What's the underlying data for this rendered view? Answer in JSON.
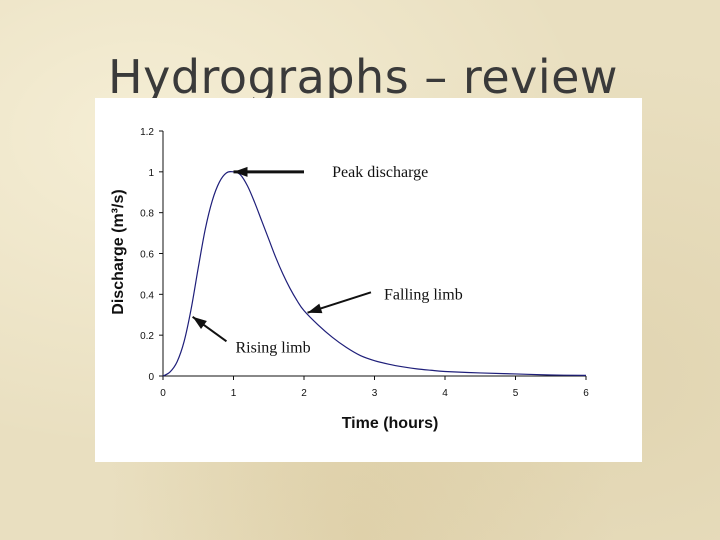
{
  "slide": {
    "title": "Hydrographs – review"
  },
  "chart_data": {
    "type": "line",
    "xlabel": "Time (hours)",
    "ylabel": "Discharge (m³/s)",
    "xlim": [
      0,
      6
    ],
    "ylim": [
      0,
      1.2
    ],
    "xticks": [
      "0",
      "1",
      "2",
      "3",
      "4",
      "5",
      "6"
    ],
    "yticks": [
      "0",
      "0.2",
      "0.4",
      "0.6",
      "0.8",
      "1",
      "1.2"
    ],
    "grid": false,
    "series": [
      {
        "x": [
          0,
          0.1,
          0.2,
          0.3,
          0.4,
          0.5,
          0.6,
          0.7,
          0.8,
          0.9,
          1.0,
          1.1,
          1.2,
          1.3,
          1.4,
          1.5,
          1.6,
          1.7,
          1.8,
          1.9,
          2.0,
          2.2,
          2.4,
          2.6,
          2.8,
          3.0,
          3.2,
          3.4,
          3.6,
          3.8,
          4.0,
          4.5,
          5.0,
          5.5,
          6.0
        ],
        "y": [
          0,
          0.02,
          0.07,
          0.17,
          0.33,
          0.53,
          0.72,
          0.86,
          0.95,
          0.995,
          1.0,
          0.985,
          0.93,
          0.85,
          0.76,
          0.67,
          0.58,
          0.5,
          0.43,
          0.37,
          0.32,
          0.25,
          0.19,
          0.14,
          0.1,
          0.075,
          0.058,
          0.045,
          0.035,
          0.028,
          0.022,
          0.015,
          0.01,
          0.005,
          0.003
        ]
      }
    ],
    "annotations": [
      {
        "text": "Peak discharge",
        "point": [
          1.0,
          1.0
        ],
        "label_at": [
          2.2,
          1.0
        ]
      },
      {
        "text": "Falling limb",
        "point": [
          2.05,
          0.31
        ],
        "label_at": [
          3.05,
          0.4
        ]
      },
      {
        "text": "Rising limb",
        "point": [
          0.42,
          0.29
        ],
        "label_at": [
          1.0,
          0.14
        ]
      }
    ]
  }
}
